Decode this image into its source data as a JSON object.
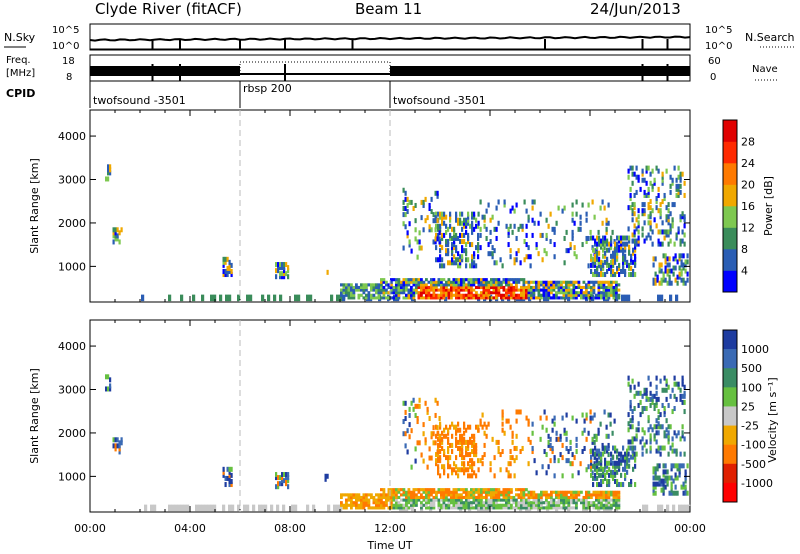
{
  "header": {
    "station": "Clyde River (fitACF)",
    "beam": "Beam 11",
    "date": "24/Jun/2013"
  },
  "nsky_panel": {
    "left_label": "N.Sky",
    "left_ticks": [
      "10^5",
      "10^0"
    ],
    "right_ticks": [
      "10^5",
      "10^0"
    ],
    "right_label": "N.Search"
  },
  "freq_panel": {
    "left_label_1": "Freq.",
    "left_label_2": "[MHz]",
    "left_ticks": [
      "18",
      "8"
    ],
    "right_ticks": [
      "60",
      "0"
    ],
    "right_label": "Nave"
  },
  "cpid": {
    "label": "CPID",
    "segments": [
      {
        "label": "twofsound -3501",
        "start_h": 0,
        "end_h": 6
      },
      {
        "label": "rbsp 200",
        "start_h": 6,
        "end_h": 12
      },
      {
        "label": "twofsound -3501",
        "start_h": 12,
        "end_h": 24
      }
    ]
  },
  "chart_data": [
    {
      "type": "heatmap",
      "panel": "power",
      "ylabel": "Slant Range [km]",
      "yticks": [
        "1000",
        "2000",
        "3000",
        "4000"
      ],
      "ylim": [
        180,
        4600
      ],
      "xlim": [
        0,
        24
      ],
      "colorbar_label": "Power [dB]",
      "colorbar_ticks": [
        "4",
        "8",
        "12",
        "16",
        "20",
        "24",
        "28"
      ],
      "colors": [
        "#0000ff",
        "#2a5db4",
        "#3a8c5a",
        "#7ec850",
        "#f0a800",
        "#ff7a00",
        "#ff2a00",
        "#e00000"
      ]
    },
    {
      "type": "heatmap",
      "panel": "velocity",
      "ylabel": "Slant Range [km]",
      "yticks": [
        "1000",
        "2000",
        "3000",
        "4000"
      ],
      "ylim": [
        180,
        4600
      ],
      "xlim": [
        0,
        24
      ],
      "xlabel": "Time UT",
      "xticks": [
        "00:00",
        "04:00",
        "08:00",
        "12:00",
        "16:00",
        "20:00",
        "00:00"
      ],
      "colorbar_label": "Velocity [m s⁻¹]",
      "colorbar_ticks": [
        "1000",
        "500",
        "100",
        "25",
        "-25",
        "-100",
        "-500",
        "-1000"
      ],
      "colors": [
        "#1e3ca0",
        "#3a6ab4",
        "#3a8c64",
        "#66c040",
        "#c8c8c8",
        "#f0a800",
        "#ff7a00",
        "#e02000",
        "#ff0000"
      ]
    }
  ]
}
